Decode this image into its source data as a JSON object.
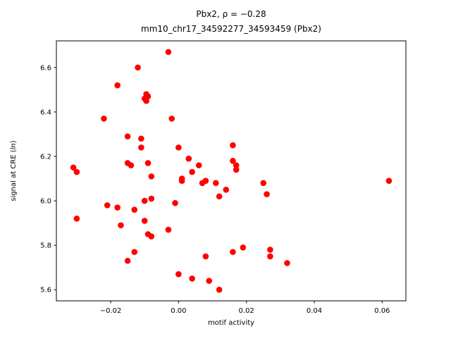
{
  "chart_data": {
    "type": "scatter",
    "title_line1": "Pbx2, ρ = −0.28",
    "title_line2": "mm10_chr17_34592277_34593459 (Pbx2)",
    "xlabel": "motif activity",
    "ylabel_pre": "signal at CRE (",
    "ylabel_italic": "ln",
    "ylabel_post": ")",
    "marker_color": "#ff0000",
    "marker_radius": 4.3,
    "xlim": [
      -0.036,
      0.067
    ],
    "ylim": [
      5.55,
      6.72
    ],
    "grid": false,
    "legend": "none",
    "xticks": [
      {
        "value": -0.02,
        "label": "−0.02"
      },
      {
        "value": 0.0,
        "label": "0.00"
      },
      {
        "value": 0.02,
        "label": "0.02"
      },
      {
        "value": 0.04,
        "label": "0.04"
      },
      {
        "value": 0.06,
        "label": "0.06"
      }
    ],
    "yticks": [
      {
        "value": 5.6,
        "label": "5.6"
      },
      {
        "value": 5.8,
        "label": "5.8"
      },
      {
        "value": 6.0,
        "label": "6.0"
      },
      {
        "value": 6.2,
        "label": "6.2"
      },
      {
        "value": 6.4,
        "label": "6.4"
      },
      {
        "value": 6.6,
        "label": "6.6"
      }
    ],
    "points": [
      [
        -0.031,
        6.15
      ],
      [
        -0.03,
        6.13
      ],
      [
        -0.03,
        5.92
      ],
      [
        -0.022,
        6.37
      ],
      [
        -0.021,
        5.98
      ],
      [
        -0.018,
        6.52
      ],
      [
        -0.018,
        5.97
      ],
      [
        -0.017,
        5.89
      ],
      [
        -0.015,
        6.29
      ],
      [
        -0.015,
        6.17
      ],
      [
        -0.015,
        5.73
      ],
      [
        -0.014,
        6.16
      ],
      [
        -0.013,
        5.96
      ],
      [
        -0.013,
        5.77
      ],
      [
        -0.012,
        6.6
      ],
      [
        -0.011,
        6.28
      ],
      [
        -0.011,
        6.24
      ],
      [
        -0.01,
        6.46
      ],
      [
        -0.0095,
        6.45
      ],
      [
        -0.009,
        6.47
      ],
      [
        -0.0095,
        6.48
      ],
      [
        -0.01,
        6.0
      ],
      [
        -0.01,
        5.91
      ],
      [
        -0.009,
        6.17
      ],
      [
        -0.009,
        5.85
      ],
      [
        -0.008,
        5.84
      ],
      [
        -0.008,
        6.11
      ],
      [
        -0.008,
        6.01
      ],
      [
        -0.003,
        6.67
      ],
      [
        -0.003,
        5.87
      ],
      [
        -0.002,
        6.37
      ],
      [
        -0.001,
        5.99
      ],
      [
        0.0,
        6.24
      ],
      [
        0.001,
        6.1
      ],
      [
        0.001,
        6.09
      ],
      [
        0.0,
        5.67
      ],
      [
        0.003,
        6.19
      ],
      [
        0.004,
        6.13
      ],
      [
        0.004,
        5.65
      ],
      [
        0.006,
        6.16
      ],
      [
        0.007,
        6.08
      ],
      [
        0.008,
        6.09
      ],
      [
        0.008,
        5.75
      ],
      [
        0.009,
        5.64
      ],
      [
        0.011,
        6.08
      ],
      [
        0.012,
        6.02
      ],
      [
        0.012,
        5.6
      ],
      [
        0.014,
        6.05
      ],
      [
        0.016,
        6.25
      ],
      [
        0.016,
        6.18
      ],
      [
        0.017,
        6.16
      ],
      [
        0.017,
        6.14
      ],
      [
        0.016,
        5.77
      ],
      [
        0.019,
        5.79
      ],
      [
        0.025,
        6.08
      ],
      [
        0.026,
        6.03
      ],
      [
        0.027,
        5.78
      ],
      [
        0.027,
        5.75
      ],
      [
        0.032,
        5.72
      ],
      [
        0.062,
        6.09
      ]
    ]
  }
}
